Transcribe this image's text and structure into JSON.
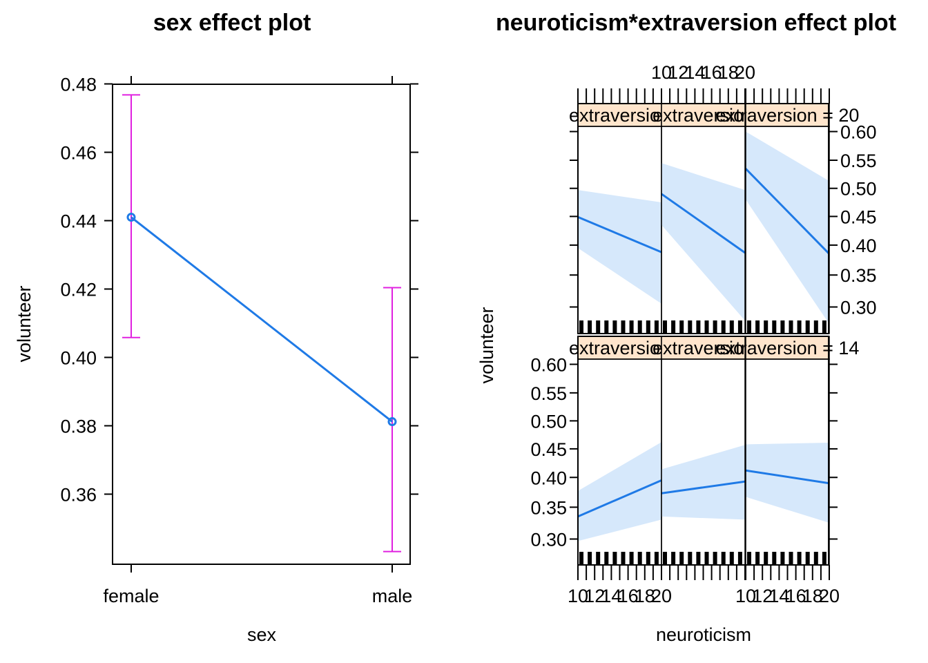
{
  "chart_data": [
    {
      "type": "line",
      "title": "sex effect plot",
      "xlabel": "sex",
      "ylabel": "volunteer",
      "categories": [
        "female",
        "male"
      ],
      "values": [
        0.441,
        0.3812
      ],
      "lower": [
        0.4058,
        0.3432
      ],
      "upper": [
        0.4768,
        0.4204
      ],
      "ylim": [
        0.3432,
        0.4768
      ],
      "yticks": [
        "0.36",
        "0.38",
        "0.40",
        "0.42",
        "0.44",
        "0.46",
        "0.48"
      ],
      "line_color": "#1f7ae6",
      "ci_color": "#e020e0"
    },
    {
      "type": "line",
      "title": "neuroticism*extraversion effect plot",
      "xlabel": "neuroticism",
      "ylabel": "volunteer",
      "xticks": [
        "10",
        "12",
        "14",
        "16",
        "18",
        "20"
      ],
      "yticks": [
        "0.30",
        "0.35",
        "0.40",
        "0.45",
        "0.50",
        "0.55",
        "0.60"
      ],
      "xlim": [
        10,
        20
      ],
      "ylim": [
        0.275,
        0.61
      ],
      "y_scale": "logit",
      "band_color": "#d6e8fb",
      "line_color": "#1f7ae6",
      "strip_color": "#ffe5cc",
      "panels": [
        {
          "strip": "extraversion",
          "row": "top",
          "col": 0,
          "x": [
            10,
            20
          ],
          "y": [
            0.449,
            0.388
          ],
          "lower": [
            0.395,
            0.305
          ],
          "upper": [
            0.497,
            0.475
          ]
        },
        {
          "strip": "extraversion",
          "row": "top",
          "col": 1,
          "x": [
            10,
            20
          ],
          "y": [
            0.49,
            0.387
          ],
          "lower": [
            0.435,
            0.28
          ],
          "upper": [
            0.545,
            0.497
          ]
        },
        {
          "strip": "extraversion = 20",
          "row": "top",
          "col": 2,
          "x": [
            10,
            20
          ],
          "y": [
            0.535,
            0.385
          ],
          "lower": [
            0.48,
            0.275
          ],
          "upper": [
            0.6,
            0.513
          ]
        },
        {
          "strip": "extraversion",
          "row": "bottom",
          "col": 0,
          "x": [
            10,
            20
          ],
          "y": [
            0.335,
            0.395
          ],
          "lower": [
            0.297,
            0.33
          ],
          "upper": [
            0.377,
            0.462
          ]
        },
        {
          "strip": "extraversion",
          "row": "bottom",
          "col": 1,
          "x": [
            10,
            20
          ],
          "y": [
            0.373,
            0.393
          ],
          "lower": [
            0.335,
            0.33
          ],
          "upper": [
            0.414,
            0.457
          ]
        },
        {
          "strip": "extraversion = 14",
          "row": "bottom",
          "col": 2,
          "x": [
            10,
            20
          ],
          "y": [
            0.412,
            0.39
          ],
          "lower": [
            0.367,
            0.325
          ],
          "upper": [
            0.458,
            0.461
          ]
        }
      ]
    }
  ]
}
